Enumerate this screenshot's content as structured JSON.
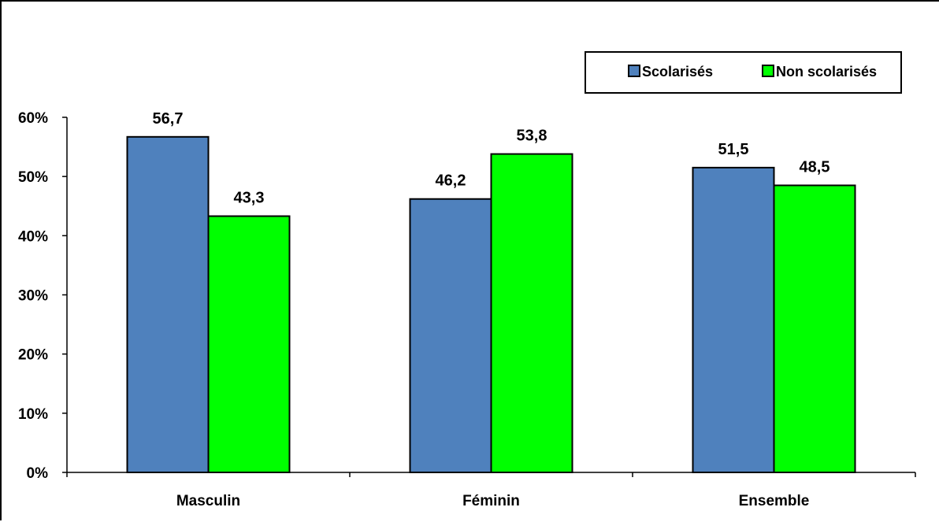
{
  "chart_data": {
    "type": "bar",
    "categories": [
      "Masculin",
      "Féminin",
      "Ensemble"
    ],
    "series": [
      {
        "name": "Scolarisés",
        "values": [
          56.7,
          46.2,
          51.5
        ],
        "data_labels": [
          "56,7",
          "46,2",
          "51,5"
        ],
        "color": "#4f81bd"
      },
      {
        "name": "Non scolarisés",
        "values": [
          43.3,
          53.8,
          48.5
        ],
        "data_labels": [
          "43,3",
          "53,8",
          "48,5"
        ],
        "color": "#00ff00"
      }
    ],
    "title": "",
    "xlabel": "",
    "ylabel": "",
    "ylim": [
      0,
      60
    ],
    "yticks": [
      {
        "value": 0,
        "label": "0%"
      },
      {
        "value": 10,
        "label": "10%"
      },
      {
        "value": 20,
        "label": "20%"
      },
      {
        "value": 30,
        "label": "30%"
      },
      {
        "value": 40,
        "label": "40%"
      },
      {
        "value": 50,
        "label": "50%"
      },
      {
        "value": 60,
        "label": "60%"
      }
    ],
    "grid": false,
    "legend_position": "top-right"
  }
}
